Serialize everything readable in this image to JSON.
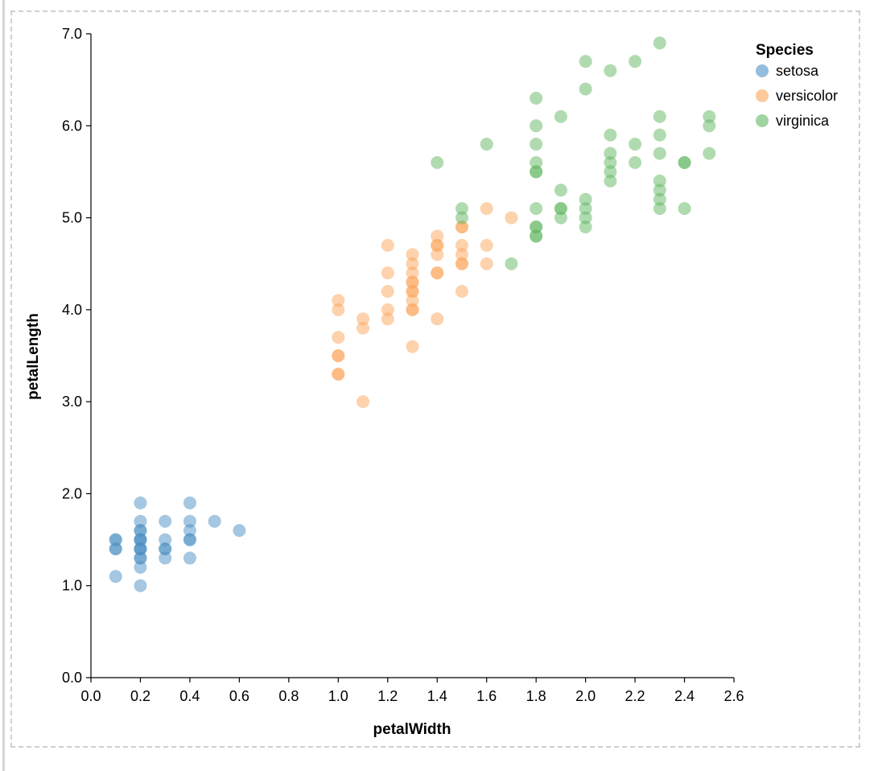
{
  "chart_data": {
    "type": "scatter",
    "xlabel": "petalWidth",
    "ylabel": "petalLength",
    "xlim": [
      0,
      2.6
    ],
    "ylim": [
      0,
      7
    ],
    "x_ticks": [
      "0.0",
      "0.2",
      "0.4",
      "0.6",
      "0.8",
      "1.0",
      "1.2",
      "1.4",
      "1.6",
      "1.8",
      "2.0",
      "2.2",
      "2.4",
      "2.6"
    ],
    "y_ticks": [
      "0.0",
      "1.0",
      "2.0",
      "3.0",
      "4.0",
      "5.0",
      "6.0",
      "7.0"
    ],
    "legend": {
      "title": "Species",
      "position": "top-right"
    },
    "series": [
      {
        "name": "setosa",
        "color": "#4c8fc4",
        "points": [
          [
            0.1,
            1.1
          ],
          [
            0.1,
            1.4
          ],
          [
            0.1,
            1.4
          ],
          [
            0.1,
            1.5
          ],
          [
            0.1,
            1.5
          ],
          [
            0.2,
            1.0
          ],
          [
            0.2,
            1.2
          ],
          [
            0.2,
            1.3
          ],
          [
            0.2,
            1.3
          ],
          [
            0.2,
            1.4
          ],
          [
            0.2,
            1.4
          ],
          [
            0.2,
            1.4
          ],
          [
            0.2,
            1.5
          ],
          [
            0.2,
            1.5
          ],
          [
            0.2,
            1.5
          ],
          [
            0.2,
            1.6
          ],
          [
            0.2,
            1.6
          ],
          [
            0.2,
            1.7
          ],
          [
            0.2,
            1.9
          ],
          [
            0.3,
            1.3
          ],
          [
            0.3,
            1.4
          ],
          [
            0.3,
            1.4
          ],
          [
            0.3,
            1.5
          ],
          [
            0.3,
            1.7
          ],
          [
            0.4,
            1.3
          ],
          [
            0.4,
            1.5
          ],
          [
            0.4,
            1.5
          ],
          [
            0.4,
            1.6
          ],
          [
            0.4,
            1.7
          ],
          [
            0.4,
            1.9
          ],
          [
            0.5,
            1.7
          ],
          [
            0.6,
            1.6
          ]
        ]
      },
      {
        "name": "versicolor",
        "color": "#fba55c",
        "points": [
          [
            1.0,
            3.3
          ],
          [
            1.0,
            3.3
          ],
          [
            1.0,
            3.5
          ],
          [
            1.0,
            3.5
          ],
          [
            1.0,
            3.7
          ],
          [
            1.0,
            4.0
          ],
          [
            1.0,
            4.1
          ],
          [
            1.1,
            3.0
          ],
          [
            1.1,
            3.8
          ],
          [
            1.1,
            3.9
          ],
          [
            1.2,
            3.9
          ],
          [
            1.2,
            4.0
          ],
          [
            1.2,
            4.2
          ],
          [
            1.2,
            4.4
          ],
          [
            1.2,
            4.7
          ],
          [
            1.3,
            3.6
          ],
          [
            1.3,
            4.0
          ],
          [
            1.3,
            4.0
          ],
          [
            1.3,
            4.1
          ],
          [
            1.3,
            4.2
          ],
          [
            1.3,
            4.2
          ],
          [
            1.3,
            4.3
          ],
          [
            1.3,
            4.3
          ],
          [
            1.3,
            4.4
          ],
          [
            1.3,
            4.5
          ],
          [
            1.3,
            4.6
          ],
          [
            1.4,
            3.9
          ],
          [
            1.4,
            4.4
          ],
          [
            1.4,
            4.4
          ],
          [
            1.4,
            4.6
          ],
          [
            1.4,
            4.7
          ],
          [
            1.4,
            4.7
          ],
          [
            1.4,
            4.8
          ],
          [
            1.5,
            4.2
          ],
          [
            1.5,
            4.5
          ],
          [
            1.5,
            4.5
          ],
          [
            1.5,
            4.6
          ],
          [
            1.5,
            4.7
          ],
          [
            1.5,
            4.9
          ],
          [
            1.5,
            4.9
          ],
          [
            1.6,
            4.5
          ],
          [
            1.6,
            4.7
          ],
          [
            1.6,
            5.1
          ],
          [
            1.7,
            5.0
          ]
        ]
      },
      {
        "name": "virginica",
        "color": "#62b862",
        "points": [
          [
            1.5,
            5.0
          ],
          [
            1.5,
            5.1
          ],
          [
            1.6,
            5.8
          ],
          [
            1.7,
            4.5
          ],
          [
            1.4,
            5.6
          ],
          [
            1.8,
            4.8
          ],
          [
            1.8,
            4.8
          ],
          [
            1.8,
            4.9
          ],
          [
            1.8,
            4.9
          ],
          [
            1.8,
            5.1
          ],
          [
            1.8,
            5.5
          ],
          [
            1.8,
            5.5
          ],
          [
            1.8,
            5.6
          ],
          [
            1.8,
            5.8
          ],
          [
            1.8,
            6.0
          ],
          [
            1.8,
            6.3
          ],
          [
            1.9,
            5.0
          ],
          [
            1.9,
            5.1
          ],
          [
            1.9,
            5.1
          ],
          [
            1.9,
            5.3
          ],
          [
            1.9,
            6.1
          ],
          [
            2.0,
            4.9
          ],
          [
            2.0,
            5.0
          ],
          [
            2.0,
            5.1
          ],
          [
            2.0,
            5.2
          ],
          [
            2.0,
            6.4
          ],
          [
            2.0,
            6.7
          ],
          [
            2.1,
            5.4
          ],
          [
            2.1,
            5.5
          ],
          [
            2.1,
            5.6
          ],
          [
            2.1,
            5.7
          ],
          [
            2.1,
            5.9
          ],
          [
            2.1,
            6.6
          ],
          [
            2.2,
            5.6
          ],
          [
            2.2,
            5.8
          ],
          [
            2.2,
            6.7
          ],
          [
            2.3,
            5.1
          ],
          [
            2.3,
            5.2
          ],
          [
            2.3,
            5.3
          ],
          [
            2.3,
            5.4
          ],
          [
            2.3,
            5.7
          ],
          [
            2.3,
            5.9
          ],
          [
            2.3,
            6.1
          ],
          [
            2.3,
            6.9
          ],
          [
            2.4,
            5.1
          ],
          [
            2.4,
            5.6
          ],
          [
            2.4,
            5.6
          ],
          [
            2.5,
            5.7
          ],
          [
            2.5,
            6.0
          ],
          [
            2.5,
            6.1
          ]
        ]
      }
    ]
  }
}
